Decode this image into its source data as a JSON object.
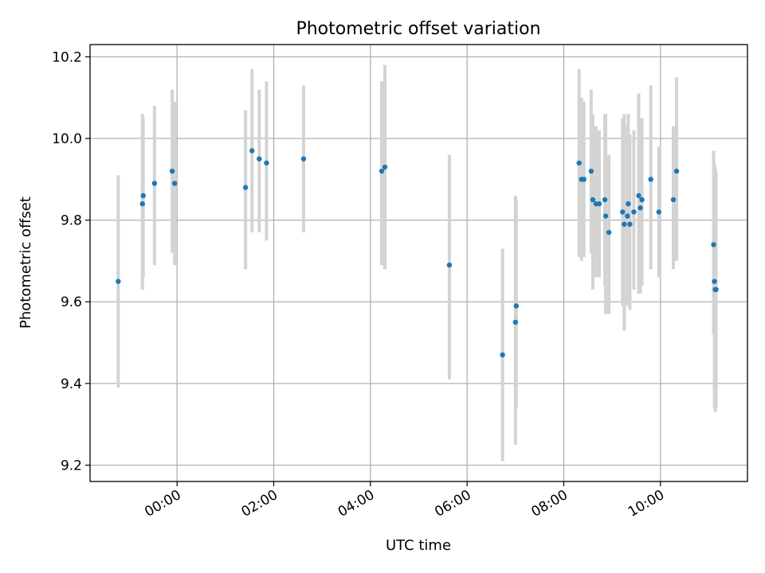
{
  "chart_data": {
    "type": "scatter",
    "title": "Photometric offset variation",
    "xlabel": "UTC time",
    "ylabel": "Photometric offset",
    "x_unit": "UTC time (HH:MM)",
    "xlim": [
      "-01:48",
      "11:48"
    ],
    "ylim": [
      9.16,
      10.23
    ],
    "xticks": [
      "00:00",
      "02:00",
      "04:00",
      "06:00",
      "08:00",
      "10:00"
    ],
    "yticks": [
      9.2,
      9.4,
      9.6,
      9.8,
      10.0,
      10.2
    ],
    "grid": true,
    "point_color": "#1f77b4",
    "errorbar_color": "#d3d3d3",
    "points": [
      {
        "x": "-01:13",
        "y": 9.65,
        "ylow": 9.39,
        "yhigh": 9.91
      },
      {
        "x": "-00:43",
        "y": 9.84,
        "ylow": 9.63,
        "yhigh": 10.06
      },
      {
        "x": "-00:42",
        "y": 9.86,
        "ylow": 9.66,
        "yhigh": 10.05
      },
      {
        "x": "-00:28",
        "y": 9.89,
        "ylow": 9.69,
        "yhigh": 10.08
      },
      {
        "x": "-00:06",
        "y": 9.92,
        "ylow": 9.72,
        "yhigh": 10.12
      },
      {
        "x": "-00:03",
        "y": 9.89,
        "ylow": 9.69,
        "yhigh": 10.09
      },
      {
        "x": "01:25",
        "y": 9.88,
        "ylow": 9.68,
        "yhigh": 10.07
      },
      {
        "x": "01:33",
        "y": 9.97,
        "ylow": 9.77,
        "yhigh": 10.17
      },
      {
        "x": "01:42",
        "y": 9.95,
        "ylow": 9.77,
        "yhigh": 10.12
      },
      {
        "x": "01:51",
        "y": 9.94,
        "ylow": 9.75,
        "yhigh": 10.14
      },
      {
        "x": "02:37",
        "y": 9.95,
        "ylow": 9.77,
        "yhigh": 10.13
      },
      {
        "x": "04:14",
        "y": 9.92,
        "ylow": 9.69,
        "yhigh": 10.14
      },
      {
        "x": "04:18",
        "y": 9.93,
        "ylow": 9.68,
        "yhigh": 10.18
      },
      {
        "x": "05:38",
        "y": 9.69,
        "ylow": 9.41,
        "yhigh": 9.96
      },
      {
        "x": "06:44",
        "y": 9.47,
        "ylow": 9.21,
        "yhigh": 9.73
      },
      {
        "x": "07:00",
        "y": 9.55,
        "ylow": 9.25,
        "yhigh": 9.86
      },
      {
        "x": "07:01",
        "y": 9.59,
        "ylow": 9.34,
        "yhigh": 9.85
      },
      {
        "x": "08:19",
        "y": 9.94,
        "ylow": 9.71,
        "yhigh": 10.17
      },
      {
        "x": "08:22",
        "y": 9.9,
        "ylow": 9.7,
        "yhigh": 10.1
      },
      {
        "x": "08:25",
        "y": 9.9,
        "ylow": 9.71,
        "yhigh": 10.09
      },
      {
        "x": "08:34",
        "y": 9.92,
        "ylow": 9.72,
        "yhigh": 10.12
      },
      {
        "x": "08:36",
        "y": 9.85,
        "ylow": 9.63,
        "yhigh": 10.06
      },
      {
        "x": "08:40",
        "y": 9.84,
        "ylow": 9.66,
        "yhigh": 10.03
      },
      {
        "x": "08:44",
        "y": 9.84,
        "ylow": 9.66,
        "yhigh": 10.02
      },
      {
        "x": "08:51",
        "y": 9.85,
        "ylow": 9.64,
        "yhigh": 10.06
      },
      {
        "x": "08:52",
        "y": 9.81,
        "ylow": 9.57,
        "yhigh": 10.06
      },
      {
        "x": "08:56",
        "y": 9.77,
        "ylow": 9.57,
        "yhigh": 9.96
      },
      {
        "x": "09:13",
        "y": 9.82,
        "ylow": 9.59,
        "yhigh": 10.05
      },
      {
        "x": "09:15",
        "y": 9.79,
        "ylow": 9.53,
        "yhigh": 10.06
      },
      {
        "x": "09:19",
        "y": 9.81,
        "ylow": 9.59,
        "yhigh": 10.03
      },
      {
        "x": "09:20",
        "y": 9.84,
        "ylow": 9.61,
        "yhigh": 10.06
      },
      {
        "x": "09:22",
        "y": 9.79,
        "ylow": 9.58,
        "yhigh": 10.01
      },
      {
        "x": "09:27",
        "y": 9.82,
        "ylow": 9.63,
        "yhigh": 10.02
      },
      {
        "x": "09:33",
        "y": 9.86,
        "ylow": 9.62,
        "yhigh": 10.11
      },
      {
        "x": "09:35",
        "y": 9.83,
        "ylow": 9.62,
        "yhigh": 10.04
      },
      {
        "x": "09:37",
        "y": 9.85,
        "ylow": 9.64,
        "yhigh": 10.05
      },
      {
        "x": "09:48",
        "y": 9.9,
        "ylow": 9.68,
        "yhigh": 10.13
      },
      {
        "x": "09:58",
        "y": 9.82,
        "ylow": 9.66,
        "yhigh": 9.98
      },
      {
        "x": "10:16",
        "y": 9.85,
        "ylow": 9.68,
        "yhigh": 10.03
      },
      {
        "x": "10:20",
        "y": 9.92,
        "ylow": 9.7,
        "yhigh": 10.15
      },
      {
        "x": "11:06",
        "y": 9.74,
        "ylow": 9.52,
        "yhigh": 9.97
      },
      {
        "x": "11:07",
        "y": 9.65,
        "ylow": 9.34,
        "yhigh": 9.94
      },
      {
        "x": "11:08",
        "y": 9.63,
        "ylow": 9.33,
        "yhigh": 9.93
      },
      {
        "x": "11:09",
        "y": 9.63,
        "ylow": 9.34,
        "yhigh": 9.92
      }
    ]
  }
}
